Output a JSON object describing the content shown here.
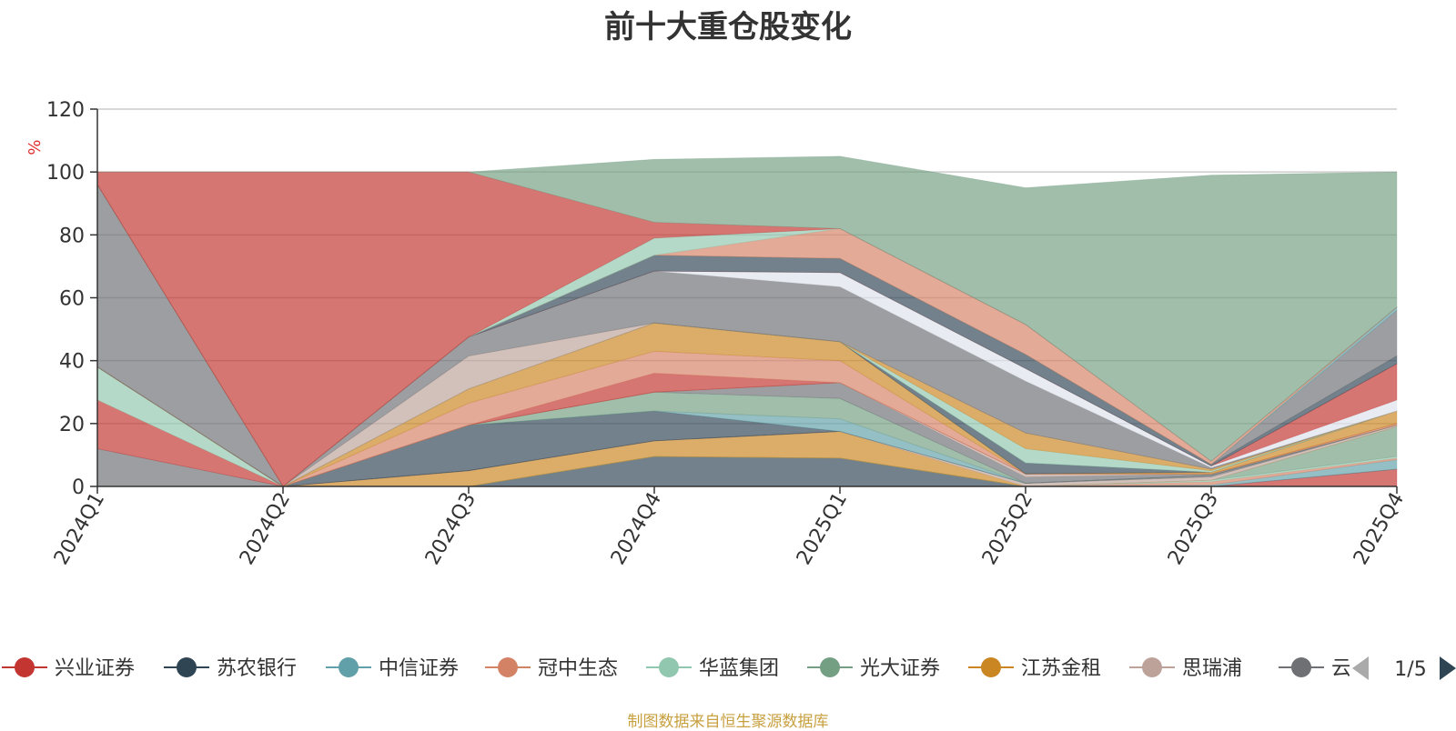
{
  "chart_data": {
    "type": "area",
    "stacked": true,
    "title": "前十大重仓股变化",
    "ylabel": "%",
    "ylim": [
      0,
      120
    ],
    "y_ticks": [
      0,
      20,
      40,
      60,
      80,
      100,
      120
    ],
    "grid": true,
    "legend_position": "bottom",
    "categories": [
      "2024Q1",
      "2024Q2",
      "2024Q3",
      "2024Q4",
      "2025Q1",
      "2025Q2",
      "2025Q3",
      "2025Q4"
    ],
    "series": [
      {
        "name": "兴业证券",
        "color": "#c23531",
        "values": [
          0,
          0,
          0,
          0,
          0,
          0,
          0,
          5.5
        ]
      },
      {
        "name": "苏农银行",
        "color": "#2f4554",
        "values": [
          0,
          0,
          0,
          9.5,
          9.0,
          0,
          0,
          0
        ]
      },
      {
        "name": "中信证券",
        "color": "#61a0a8",
        "values": [
          0,
          0,
          0,
          0,
          0,
          0,
          0.5,
          3.0
        ]
      },
      {
        "name": "冠中生态",
        "color": "#d48265",
        "values": [
          0,
          0,
          0,
          0,
          0,
          0,
          1.0,
          0.5
        ]
      },
      {
        "name": "华蓝集团",
        "color": "#91c7ae",
        "values": [
          0,
          0,
          0,
          0,
          0,
          0,
          0.5,
          0.5
        ]
      },
      {
        "name": "光大证券",
        "color": "#749f83",
        "values": [
          0,
          0,
          0,
          0,
          0,
          0,
          0,
          9.5
        ]
      },
      {
        "name": "江苏金租",
        "color": "#ca8622",
        "values": [
          0,
          0,
          5.0,
          5.0,
          8.5,
          0,
          0,
          0
        ]
      },
      {
        "name": "思瑞浦",
        "color": "#bda29a",
        "values": [
          0,
          0,
          0,
          0,
          0,
          1.0,
          1.0,
          0.5
        ]
      },
      {
        "name": "云",
        "color": "#6e7074",
        "values": [
          12.0,
          0,
          0,
          0,
          0,
          0,
          0.5,
          0
        ]
      },
      {
        "name": "",
        "color": "#c23531",
        "values": [
          15.5,
          0,
          0,
          0,
          0,
          0,
          0,
          0
        ]
      },
      {
        "name": "",
        "color": "#91c7ae",
        "values": [
          10.5,
          0,
          0,
          0,
          0,
          0,
          0,
          0
        ]
      },
      {
        "name": "",
        "color": "#2f4554",
        "values": [
          0,
          0,
          14.5,
          9.5,
          0,
          0,
          0,
          0
        ]
      },
      {
        "name": "",
        "color": "#61a0a8",
        "values": [
          0,
          0,
          0,
          0,
          4.0,
          0,
          0,
          0
        ]
      },
      {
        "name": "",
        "color": "#749f83",
        "values": [
          0,
          0,
          0,
          6.0,
          6.5,
          0,
          0,
          0
        ]
      },
      {
        "name": "",
        "color": "#6e7074",
        "values": [
          0,
          0,
          0,
          0,
          5.0,
          2.0,
          0.5,
          0
        ]
      },
      {
        "name": "",
        "color": "#bda29a",
        "values": [
          0,
          0,
          0,
          0,
          0,
          1.0,
          0,
          0
        ]
      },
      {
        "name": "",
        "color": "#d48265",
        "values": [
          0,
          0,
          0,
          0,
          0,
          0,
          0,
          0.5
        ]
      },
      {
        "name": "",
        "color": "#c23531",
        "values": [
          0,
          0,
          0,
          6.0,
          0,
          0,
          0,
          0
        ]
      },
      {
        "name": "",
        "color": "#d48265",
        "values": [
          0,
          0,
          7.0,
          7.0,
          7.0,
          0,
          0,
          0
        ]
      },
      {
        "name": "",
        "color": "#ca8622",
        "values": [
          0,
          0,
          4.5,
          9.0,
          6.0,
          0,
          0.5,
          4.0
        ]
      },
      {
        "name": "",
        "color": "#2f4554",
        "values": [
          0,
          0,
          0,
          0,
          0,
          3.5,
          0,
          0
        ]
      },
      {
        "name": "",
        "color": "#91c7ae",
        "values": [
          0,
          0,
          0,
          0,
          0,
          4.5,
          0.5,
          0
        ]
      },
      {
        "name": "",
        "color": "#ca8622",
        "values": [
          0,
          0,
          0,
          0,
          0,
          5.0,
          0.5,
          0
        ]
      },
      {
        "name": "",
        "color": "#bda29a",
        "values": [
          0,
          0,
          10.5,
          0,
          0,
          0,
          0,
          0
        ]
      },
      {
        "name": "",
        "color": "#6e7074",
        "values": [
          58.0,
          0,
          6.0,
          16.5,
          17.5,
          16.5,
          0.5,
          0
        ]
      },
      {
        "name": "",
        "color": "#dde2ea",
        "values": [
          0,
          0,
          0,
          0,
          4.5,
          4.0,
          0.5,
          3.5
        ]
      },
      {
        "name": "",
        "color": "#c23531",
        "values": [
          0,
          0,
          0,
          0,
          0,
          0,
          0,
          11.5
        ]
      },
      {
        "name": "",
        "color": "#2f4554",
        "values": [
          0,
          0,
          0,
          5.0,
          4.5,
          4.5,
          0.5,
          2.5
        ]
      },
      {
        "name": "",
        "color": "#6e7074",
        "values": [
          0,
          0,
          0,
          0,
          0,
          0,
          0,
          14.5
        ]
      },
      {
        "name": "",
        "color": "#61a0a8",
        "values": [
          0,
          0,
          0,
          0,
          0,
          0,
          0,
          1.0
        ]
      },
      {
        "name": "",
        "color": "#d48265",
        "values": [
          0,
          0,
          0,
          0,
          9.5,
          9.5,
          1.0,
          0
        ]
      },
      {
        "name": "",
        "color": "#91c7ae",
        "values": [
          0,
          0,
          0,
          5.5,
          0,
          0,
          0,
          0
        ]
      },
      {
        "name": "",
        "color": "#c23531",
        "values": [
          4.0,
          100.0,
          52.5,
          5.0,
          0,
          0,
          0,
          0
        ]
      },
      {
        "name": "",
        "color": "#749f83",
        "values": [
          0,
          0,
          0,
          20.0,
          23.0,
          43.5,
          91.0,
          43.0
        ]
      }
    ]
  },
  "legend": {
    "items": [
      {
        "name": "兴业证券",
        "color": "#c23531"
      },
      {
        "name": "苏农银行",
        "color": "#2f4554"
      },
      {
        "name": "中信证券",
        "color": "#61a0a8"
      },
      {
        "name": "冠中生态",
        "color": "#d48265"
      },
      {
        "name": "华蓝集团",
        "color": "#91c7ae"
      },
      {
        "name": "光大证券",
        "color": "#749f83"
      },
      {
        "name": "江苏金租",
        "color": "#ca8622"
      },
      {
        "name": "思瑞浦",
        "color": "#bda29a"
      },
      {
        "name": "云",
        "color": "#6e7074"
      }
    ],
    "page_indicator": "1/5",
    "prev_icon": "triangle-left-icon",
    "next_icon": "triangle-right-icon"
  },
  "footer": {
    "source_note": "制图数据来自恒生聚源数据库"
  }
}
